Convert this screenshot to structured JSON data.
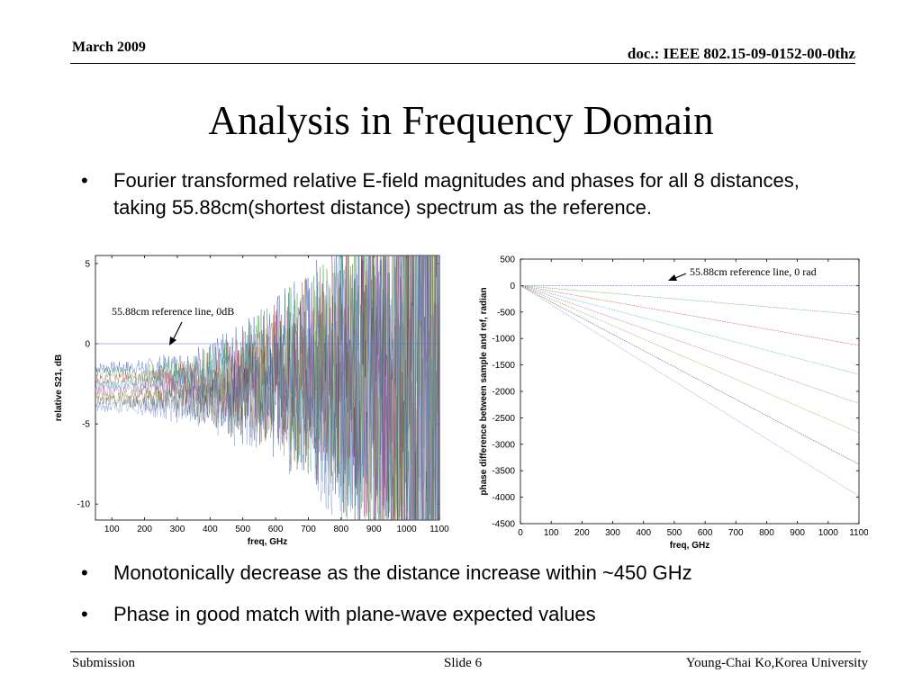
{
  "header": {
    "date": "March 2009",
    "doc_id": "doc.: IEEE 802.15-09-0152-00-0thz"
  },
  "title": "Analysis in Frequency Domain",
  "bullets_top": [
    "Fourier transformed relative E-field magnitudes and phases for all 8 distances, taking 55.88cm(shortest distance) spectrum as the reference."
  ],
  "bullets_bottom": [
    "Monotonically decrease as the distance increase within ~450 GHz",
    "Phase in good match with plane-wave expected values"
  ],
  "footer": {
    "left": "Submission",
    "center": "Slide 6",
    "right": "Young-Chai Ko,Korea University"
  },
  "chart_data": [
    {
      "type": "line",
      "xlabel": "freq, GHz",
      "ylabel": "relative S21, dB",
      "xlim": [
        50,
        1100
      ],
      "ylim": [
        -11,
        5.5
      ],
      "xticks": [
        100,
        200,
        300,
        400,
        500,
        600,
        700,
        800,
        900,
        1000,
        1100
      ],
      "yticks": [
        5,
        0,
        -5,
        -10
      ],
      "annotation": "55.88cm reference line, 0dB",
      "reference_value": 0,
      "series_count": 8,
      "series_colors": [
        "#1f3fbf",
        "#2e9e2e",
        "#c03030",
        "#25a8a8",
        "#b040b0",
        "#909020",
        "#404040",
        "#6a8ad8"
      ]
    },
    {
      "type": "line",
      "xlabel": "freq, GHz",
      "ylabel": "phase difference between sample and ref, radian",
      "xlim": [
        0,
        1100
      ],
      "ylim": [
        -4500,
        500
      ],
      "xticks": [
        0,
        100,
        200,
        300,
        400,
        500,
        600,
        700,
        800,
        900,
        1000,
        1100
      ],
      "yticks": [
        500,
        0,
        -500,
        -1000,
        -1500,
        -2000,
        -2500,
        -3000,
        -3500,
        -4000,
        -4500
      ],
      "annotation": "55.88cm reference line, 0 rad",
      "reference_value": 0,
      "series": [
        {
          "x": [
            0,
            1100
          ],
          "y": [
            0,
            0
          ],
          "color": "#1f3fbf"
        },
        {
          "x": [
            0,
            1100
          ],
          "y": [
            0,
            -550
          ],
          "color": "#2e9e2e"
        },
        {
          "x": [
            0,
            1100
          ],
          "y": [
            0,
            -1130
          ],
          "color": "#c03030"
        },
        {
          "x": [
            0,
            1100
          ],
          "y": [
            0,
            -1680
          ],
          "color": "#25a8a8"
        },
        {
          "x": [
            0,
            1100
          ],
          "y": [
            0,
            -2230
          ],
          "color": "#b040b0"
        },
        {
          "x": [
            0,
            1100
          ],
          "y": [
            0,
            -2780
          ],
          "color": "#909020"
        },
        {
          "x": [
            0,
            1100
          ],
          "y": [
            0,
            -3380
          ],
          "color": "#404040"
        },
        {
          "x": [
            0,
            1100
          ],
          "y": [
            0,
            -3980
          ],
          "color": "#6a8ad8"
        }
      ]
    }
  ]
}
